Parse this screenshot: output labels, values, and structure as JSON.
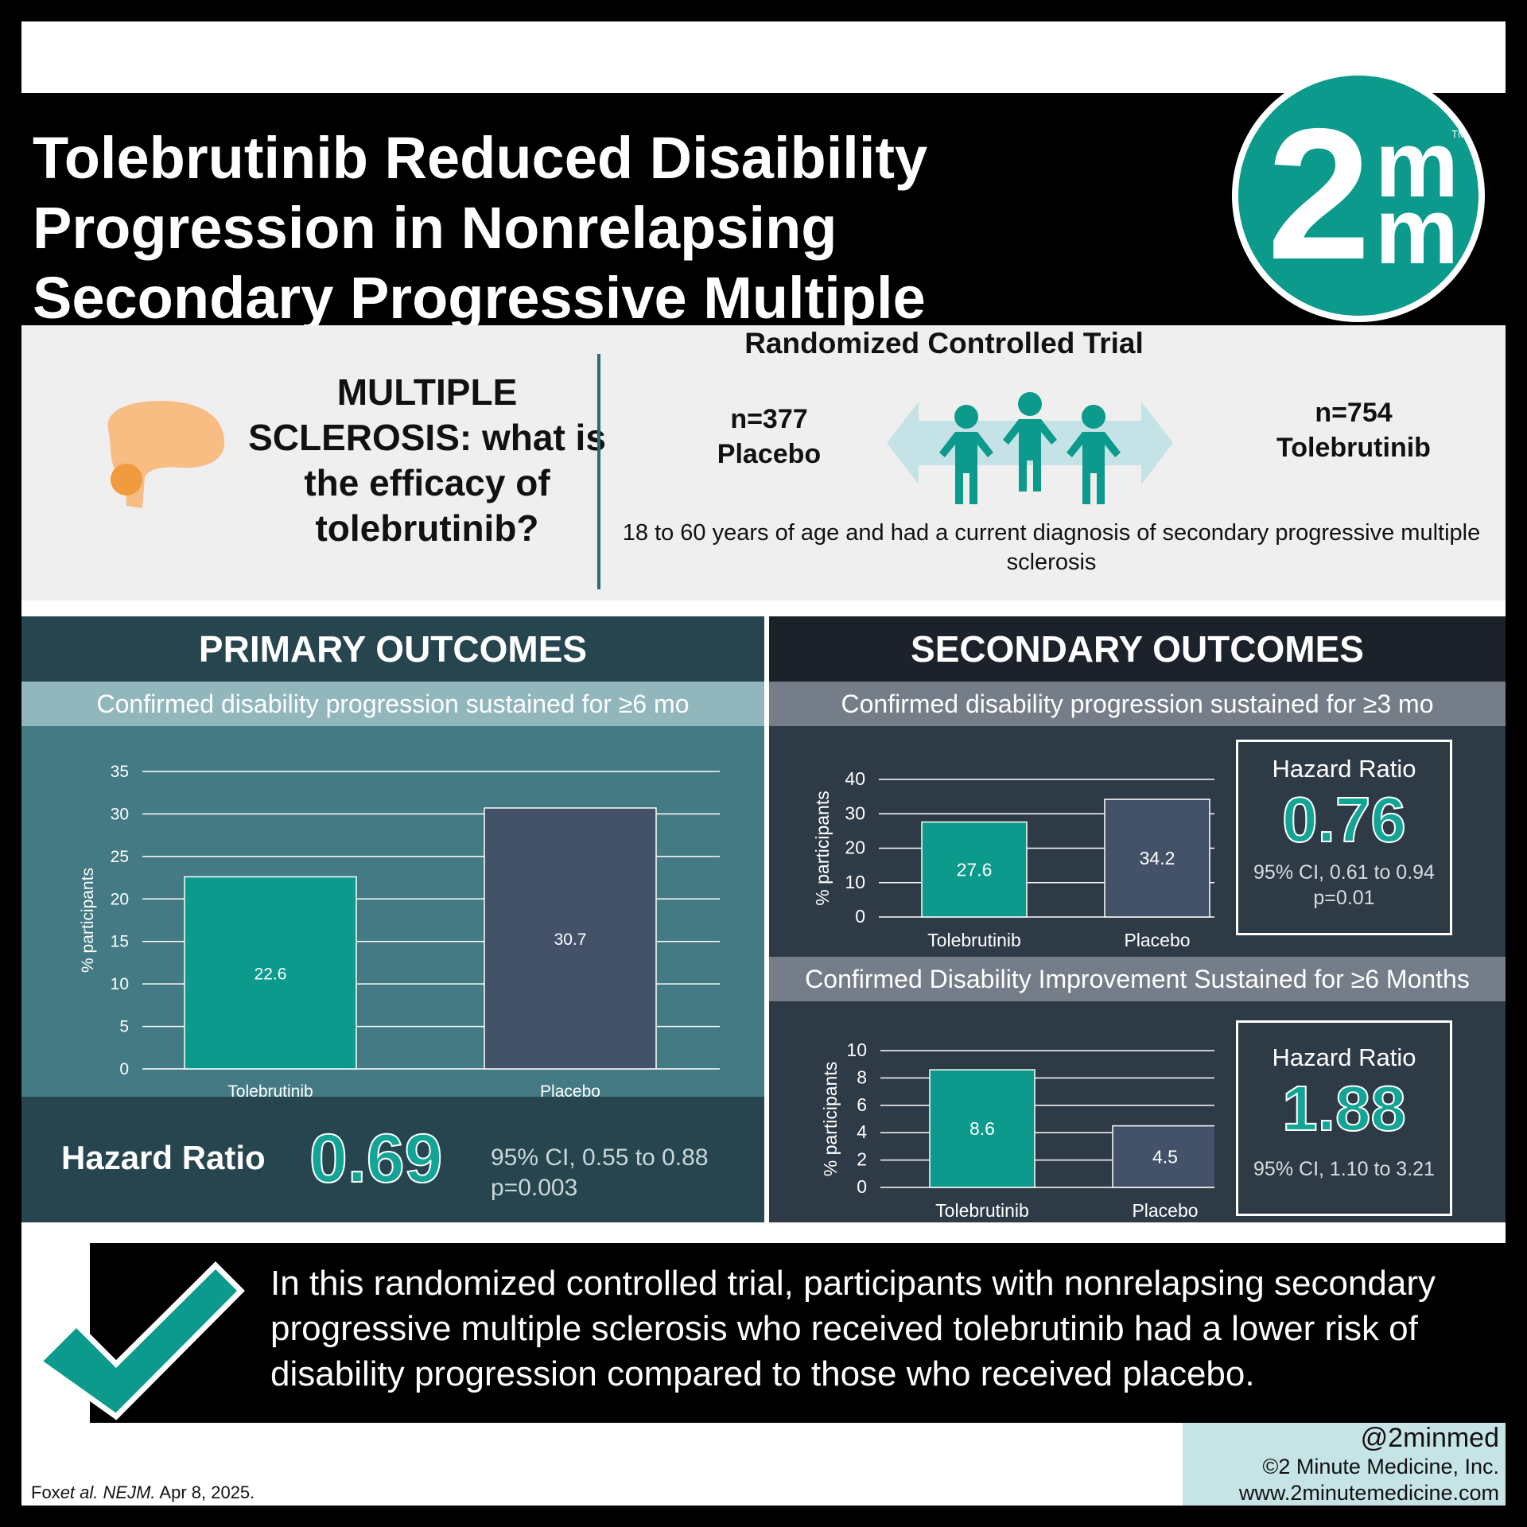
{
  "title": "Tolebrutinib Reduced Disaibility Progression in Nonrelapsing Secondary Progressive Multiple Sclerosis",
  "logo": {
    "two": "2",
    "m": "m",
    "tm": "TM"
  },
  "question": "MULTIPLE SCLEROSIS: what is the efficacy of tolebrutinib?",
  "trial": {
    "type": "Randomized Controlled Trial",
    "placebo_n": "n=377",
    "placebo_label": "Placebo",
    "tol_n": "n=754",
    "tol_label": "Tolebrutinib",
    "criteria": "18 to 60 years of age and had a current diagnosis of secondary progressive multiple sclerosis"
  },
  "primary": {
    "heading": "PRIMARY OUTCOMES",
    "subheading": "Confirmed disability progression sustained for ≥6 mo",
    "hr_label": "Hazard Ratio",
    "hr_value": "0.69",
    "ci": "95% CI, 0.55 to 0.88",
    "p": "p=0.003"
  },
  "secondary": {
    "heading": "SECONDARY OUTCOMES",
    "sub1": "Confirmed disability progression sustained for ≥3 mo",
    "sub2": "Confirmed Disability Improvement Sustained for ≥6 Months",
    "hr1_label": "Hazard Ratio",
    "hr1_value": "0.76",
    "hr1_ci": "95% CI, 0.61 to 0.94",
    "hr1_p": "p=0.01",
    "hr2_label": "Hazard Ratio",
    "hr2_value": "1.88",
    "hr2_ci": "95% CI, 1.10 to 3.21"
  },
  "chart_data": [
    {
      "type": "bar",
      "categories": [
        "Tolebrutinib",
        "Placebo"
      ],
      "values": [
        22.6,
        30.7
      ],
      "ylabel": "% participants",
      "ylim": [
        0,
        35
      ],
      "yticks": [
        0,
        5,
        10,
        15,
        20,
        25,
        30,
        35
      ],
      "colors": [
        "#0b9a8c",
        "#435269"
      ],
      "grid": true
    },
    {
      "type": "bar",
      "categories": [
        "Tolebrutinib",
        "Placebo"
      ],
      "values": [
        27.6,
        34.2
      ],
      "ylabel": "% participants",
      "ylim": [
        0,
        40
      ],
      "yticks": [
        0,
        10,
        20,
        30,
        40
      ],
      "colors": [
        "#0b9a8c",
        "#435269"
      ],
      "grid": true
    },
    {
      "type": "bar",
      "categories": [
        "Tolebrutinib",
        "Placebo"
      ],
      "values": [
        8.6,
        4.5
      ],
      "ylabel": "% participants",
      "ylim": [
        0,
        10
      ],
      "yticks": [
        0,
        2,
        4,
        6,
        8,
        10
      ],
      "colors": [
        "#0b9a8c",
        "#435269"
      ],
      "grid": true
    }
  ],
  "conclusion": "In this randomized controlled trial, participants with nonrelapsing secondary progressive multiple sclerosis who received tolebrutinib had a lower risk of disability progression compared to those who received placebo.",
  "footer": {
    "handle": "@2minmed",
    "company": "©2 Minute Medicine, Inc.",
    "url": "www.2minutemedicine.com",
    "cite_author": "Fox",
    "cite_etal": "et al.",
    "cite_journal": "NEJM.",
    "cite_date": "Apr 8, 2025."
  },
  "colors": {
    "teal": "#0b9a8c",
    "slate": "#435269",
    "primary_bg": "#437a84",
    "secondary_bg": "#2f3a47"
  }
}
